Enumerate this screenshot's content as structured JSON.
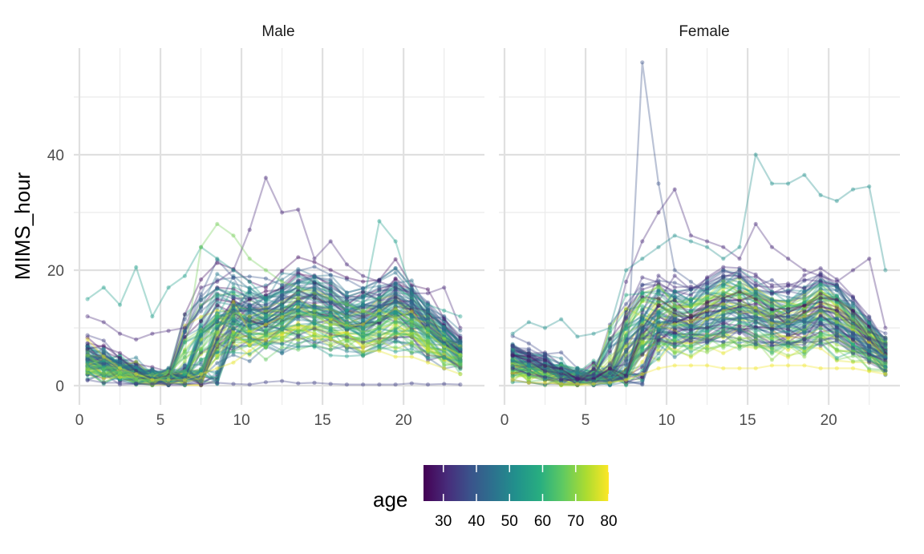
{
  "chart_data": {
    "type": "line",
    "facets": [
      "Male",
      "Female"
    ],
    "xlabel": "",
    "ylabel": "MIMS_hour",
    "xlim": [
      0,
      24
    ],
    "ylim": [
      0,
      55
    ],
    "x_ticks": [
      0,
      5,
      10,
      15,
      20
    ],
    "y_ticks": [
      0,
      20,
      40
    ],
    "grid": true,
    "legend": {
      "title": "age",
      "type": "colorbar",
      "colormap": "viridis",
      "range": [
        24,
        80
      ],
      "ticks": [
        30,
        40,
        50,
        60,
        70,
        80
      ],
      "placement": "bottom"
    },
    "point_alpha": 0.35,
    "highlighted_series": [
      {
        "facet": "Male",
        "age": 30,
        "x": [
          0.5,
          1.5,
          2.5,
          3.5,
          4.5,
          5.5,
          6.5,
          7.5,
          8.5,
          9.5,
          10.5,
          11.5,
          12.5,
          13.5,
          14.5,
          15.5,
          16.5,
          17.5,
          18.5,
          19.5,
          20.5,
          21.5,
          22.5,
          23.5
        ],
        "y": [
          12,
          11,
          9,
          8,
          9,
          9.5,
          10,
          17,
          18,
          20,
          27,
          36,
          30,
          30.5,
          22,
          25,
          21,
          19,
          18,
          17,
          16,
          16,
          17,
          10
        ]
      },
      {
        "facet": "Male",
        "age": 35,
        "x": [
          0.5,
          1.5,
          2.5,
          3.5,
          4.5,
          5.5,
          6.5,
          7.5,
          8.5,
          9.5,
          10.5,
          11.5,
          12.5,
          13.5,
          14.5,
          15.5,
          16.5,
          17.5,
          18.5,
          19.5,
          20.5,
          21.5,
          22.5,
          23.5
        ],
        "y": [
          1,
          0.5,
          0.5,
          0.3,
          0.3,
          0.3,
          0.3,
          0.3,
          0.5,
          0.3,
          0.2,
          0.6,
          0.8,
          0.4,
          0.5,
          0.3,
          0.2,
          0.2,
          0.2,
          0.2,
          0.4,
          0.2,
          0.3,
          0.2
        ]
      },
      {
        "facet": "Male",
        "age": 55,
        "x": [
          0.5,
          1.5,
          2.5,
          3.5,
          4.5,
          5.5,
          6.5,
          7.5,
          8.5,
          9.5,
          10.5,
          11.5,
          12.5,
          13.5,
          14.5,
          15.5,
          16.5,
          17.5,
          18.5,
          19.5,
          20.5,
          21.5,
          22.5,
          23.5
        ],
        "y": [
          15,
          17,
          14,
          20.5,
          12,
          17,
          19,
          24,
          22,
          20,
          18,
          15,
          14,
          13,
          12,
          12,
          13,
          14,
          28.5,
          25,
          16,
          14,
          13,
          12
        ]
      },
      {
        "facet": "Male",
        "age": 68,
        "x": [
          0.5,
          1.5,
          2.5,
          3.5,
          4.5,
          5.5,
          6.5,
          7.5,
          8.5,
          9.5,
          10.5,
          11.5,
          12.5,
          13.5,
          14.5,
          15.5,
          16.5,
          17.5,
          18.5,
          19.5,
          20.5,
          21.5,
          22.5,
          23.5
        ],
        "y": [
          3,
          2,
          2,
          1,
          1,
          1.5,
          6,
          24,
          28,
          26,
          22,
          20,
          18,
          17,
          16,
          15,
          14,
          13,
          12,
          12,
          11,
          10,
          8,
          5
        ]
      },
      {
        "facet": "Male",
        "age": 78,
        "x": [
          0.5,
          1.5,
          2.5,
          3.5,
          4.5,
          5.5,
          6.5,
          7.5,
          8.5,
          9.5,
          10.5,
          11.5,
          12.5,
          13.5,
          14.5,
          15.5,
          16.5,
          17.5,
          18.5,
          19.5,
          20.5,
          21.5,
          22.5,
          23.5
        ],
        "y": [
          8,
          5,
          3,
          2,
          1,
          1,
          1,
          2,
          3,
          4,
          6,
          8,
          9,
          10,
          9,
          8,
          7,
          6,
          6,
          5,
          5,
          4,
          3,
          2
        ]
      },
      {
        "facet": "Female",
        "age": 38,
        "x": [
          0.5,
          1.5,
          2.5,
          3.5,
          4.5,
          5.5,
          6.5,
          7.5,
          8.5,
          9.5,
          10.5,
          11.5,
          12.5,
          13.5,
          14.5,
          15.5,
          16.5,
          17.5,
          18.5,
          19.5,
          20.5,
          21.5,
          22.5,
          23.5
        ],
        "y": [
          1,
          0.5,
          0.3,
          0.3,
          0.3,
          0.5,
          1,
          1,
          56,
          35,
          20,
          18,
          16,
          15,
          14,
          13,
          12,
          12,
          11,
          11,
          10,
          9,
          8,
          7
        ]
      },
      {
        "facet": "Female",
        "age": 30,
        "x": [
          0.5,
          1.5,
          2.5,
          3.5,
          4.5,
          5.5,
          6.5,
          7.5,
          8.5,
          9.5,
          10.5,
          11.5,
          12.5,
          13.5,
          14.5,
          15.5,
          16.5,
          17.5,
          18.5,
          19.5,
          20.5,
          21.5,
          22.5,
          23.5
        ],
        "y": [
          3,
          2,
          1.5,
          1,
          1,
          2,
          6,
          18,
          25,
          30,
          34,
          26,
          25,
          24,
          22,
          28,
          24,
          22,
          20,
          19,
          18,
          20,
          22,
          10
        ]
      },
      {
        "facet": "Female",
        "age": 52,
        "x": [
          0.5,
          1.5,
          2.5,
          3.5,
          4.5,
          5.5,
          6.5,
          7.5,
          8.5,
          9.5,
          10.5,
          11.5,
          12.5,
          13.5,
          14.5,
          15.5,
          16.5,
          17.5,
          18.5,
          19.5,
          20.5,
          21.5,
          22.5,
          23.5
        ],
        "y": [
          9,
          11,
          10,
          11.5,
          8.5,
          9,
          10,
          20,
          22,
          24,
          26,
          25,
          24,
          22,
          24,
          40,
          35,
          35,
          36.5,
          33,
          32,
          34,
          34.5,
          20
        ]
      },
      {
        "facet": "Female",
        "age": 79,
        "x": [
          0.5,
          1.5,
          2.5,
          3.5,
          4.5,
          5.5,
          6.5,
          7.5,
          8.5,
          9.5,
          10.5,
          11.5,
          12.5,
          13.5,
          14.5,
          15.5,
          16.5,
          17.5,
          18.5,
          19.5,
          20.5,
          21.5,
          22.5,
          23.5
        ],
        "y": [
          1,
          0.5,
          0.5,
          0.3,
          0.3,
          0.3,
          0.5,
          1,
          2,
          3,
          3.5,
          3.5,
          3.5,
          3,
          3,
          3,
          3.5,
          3.5,
          3.5,
          3,
          3,
          3,
          2.5,
          2
        ]
      }
    ]
  }
}
